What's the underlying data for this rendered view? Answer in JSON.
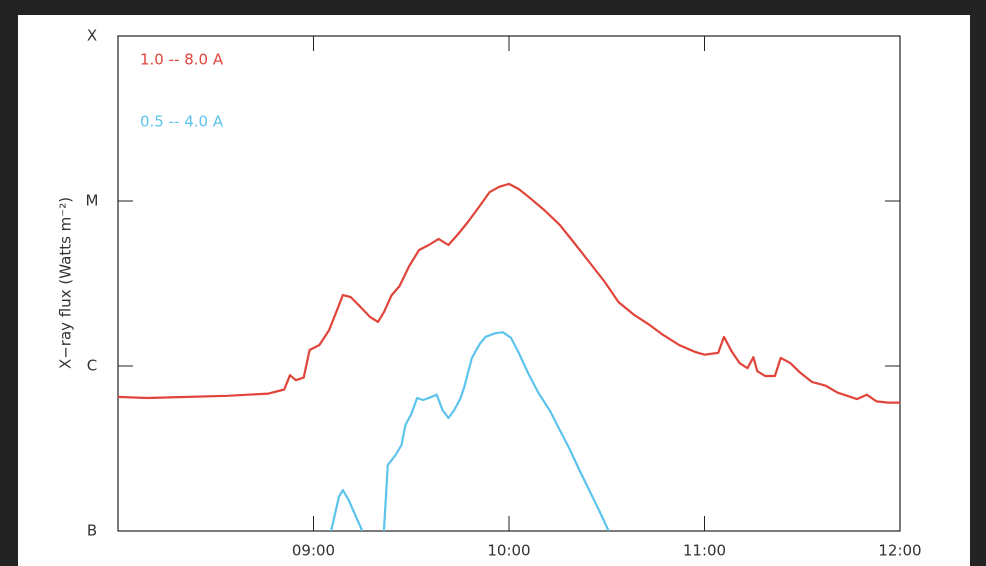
{
  "chart_data": {
    "type": "line",
    "ylabel": "X−ray flux (Watts m⁻²)",
    "yscale": "log",
    "xlim": [
      8,
      12
    ],
    "xticks": [
      {
        "value": 9,
        "label": "09:00"
      },
      {
        "value": 10,
        "label": "10:00"
      },
      {
        "value": 11,
        "label": "11:00"
      },
      {
        "value": 12,
        "label": "12:00"
      }
    ],
    "ylim": [
      1e-07,
      0.0001
    ],
    "yticks": [
      {
        "value": 1e-07,
        "label": "B"
      },
      {
        "value": 1e-06,
        "label": "C"
      },
      {
        "value": 1e-05,
        "label": "M"
      },
      {
        "value": 0.0001,
        "label": "X"
      }
    ],
    "series": [
      {
        "name": "1.0 -- 8.0 A",
        "color": "#e0443a",
        "x": [
          8.0,
          8.15,
          8.36,
          8.56,
          8.77,
          8.85,
          8.88,
          8.91,
          8.95,
          8.98,
          9.03,
          9.08,
          9.12,
          9.15,
          9.19,
          9.24,
          9.29,
          9.33,
          9.36,
          9.4,
          9.44,
          9.49,
          9.54,
          9.59,
          9.64,
          9.69,
          9.74,
          9.79,
          9.85,
          9.9,
          9.95,
          10.0,
          10.05,
          10.1,
          10.18,
          10.26,
          10.33,
          10.41,
          10.49,
          10.56,
          10.64,
          10.72,
          10.79,
          10.87,
          10.95,
          11.0,
          11.07,
          11.1,
          11.14,
          11.18,
          11.22,
          11.25,
          11.27,
          11.31,
          11.36,
          11.39,
          11.44,
          11.49,
          11.55,
          11.62,
          11.68,
          11.73,
          11.78,
          11.83,
          11.88,
          11.94,
          12.0
        ],
        "values": [
          6.5e-07,
          6.4e-07,
          6.5e-07,
          6.6e-07,
          6.8e-07,
          7.2e-07,
          8.8e-07,
          8.2e-07,
          8.5e-07,
          1.25e-06,
          1.34e-06,
          1.65e-06,
          2.18e-06,
          2.69e-06,
          2.62e-06,
          2.28e-06,
          1.98e-06,
          1.85e-06,
          2.12e-06,
          2.69e-06,
          3.05e-06,
          4.04e-06,
          5.05e-06,
          5.41e-06,
          5.89e-06,
          5.41e-06,
          6.31e-06,
          7.46e-06,
          9.33e-06,
          1.13e-05,
          1.22e-05,
          1.27e-05,
          1.18e-05,
          1.06e-05,
          8.82e-06,
          7.16e-06,
          5.64e-06,
          4.27e-06,
          3.23e-06,
          2.44e-06,
          2.04e-06,
          1.77e-06,
          1.54e-06,
          1.34e-06,
          1.22e-06,
          1.17e-06,
          1.2e-06,
          1.5e-06,
          1.22e-06,
          1.04e-06,
          9.7e-07,
          1.13e-06,
          9.3e-07,
          8.7e-07,
          8.7e-07,
          1.12e-06,
          1.04e-06,
          9.1e-07,
          8e-07,
          7.6e-07,
          6.9e-07,
          6.6e-07,
          6.3e-07,
          6.7e-07,
          6.1e-07,
          6e-07,
          6e-07
        ]
      },
      {
        "name": "0.5 -- 4.0 A",
        "color": "#5cc4ec",
        "x": [
          9.09,
          9.13,
          9.15,
          9.18,
          9.22,
          9.25,
          9.3,
          9.36,
          9.38,
          9.42,
          9.45,
          9.47,
          9.5,
          9.53,
          9.56,
          9.59,
          9.63,
          9.66,
          9.69,
          9.72,
          9.75,
          9.77,
          9.81,
          9.85,
          9.88,
          9.93,
          9.97,
          10.01,
          10.05,
          10.1,
          10.15,
          10.21,
          10.26,
          10.31,
          10.36,
          10.41,
          10.46,
          10.51
        ],
        "values": [
          1e-07,
          1.61e-07,
          1.77e-07,
          1.54e-07,
          1.2e-07,
          1e-07,
          null,
          1e-07,
          2.51e-07,
          2.89e-07,
          3.32e-07,
          4.39e-07,
          5.12e-07,
          6.4e-07,
          6.22e-07,
          6.4e-07,
          6.7e-07,
          5.41e-07,
          4.84e-07,
          5.41e-07,
          6.3e-07,
          7.36e-07,
          1.12e-06,
          1.36e-06,
          1.5e-06,
          1.58e-06,
          1.6e-06,
          1.48e-06,
          1.2e-06,
          8.95e-07,
          6.9e-07,
          5.34e-07,
          4.09e-07,
          3.14e-07,
          2.34e-07,
          1.77e-07,
          1.34e-07,
          1e-07
        ]
      }
    ]
  }
}
